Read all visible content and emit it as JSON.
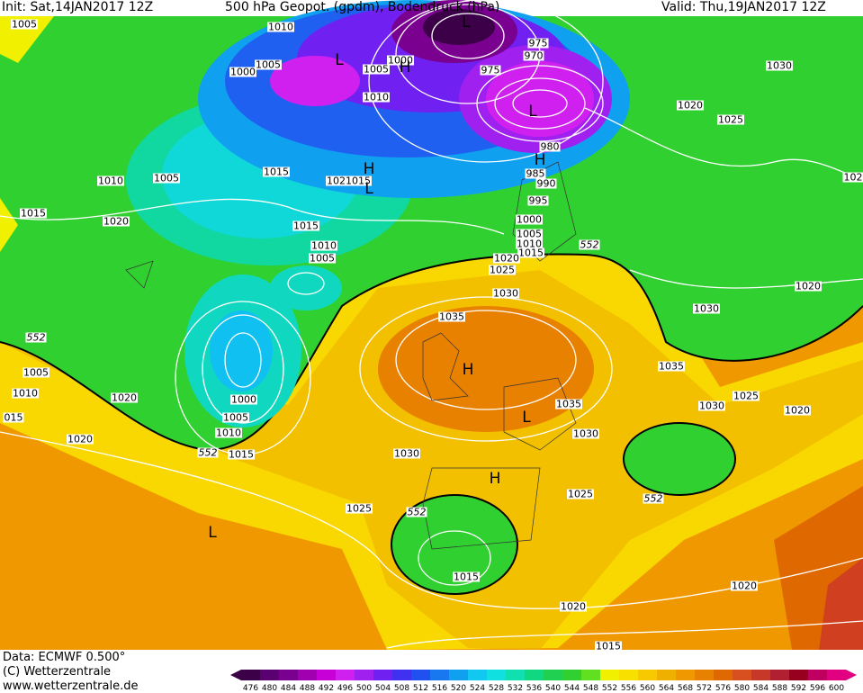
{
  "header": {
    "init": "Init: Sat,14JAN2017 12Z",
    "title": "500 hPa Geopot. (gpdm), Bodendruck (hPa)",
    "valid": "Valid: Thu,19JAN2017 12Z"
  },
  "footer": {
    "data": "Data: ECMWF  0.500°",
    "copyright": "(C) Wetterzentrale",
    "url": "www.wetterzentrale.de"
  },
  "colorbar": {
    "values": [
      476,
      480,
      484,
      488,
      492,
      496,
      500,
      504,
      508,
      512,
      516,
      520,
      524,
      528,
      532,
      536,
      540,
      544,
      548,
      552,
      556,
      560,
      564,
      568,
      572,
      576,
      580,
      584,
      588,
      592,
      596,
      600
    ],
    "colors": [
      "#3b0048",
      "#5a0070",
      "#7a0090",
      "#a000b0",
      "#c800d8",
      "#d020f0",
      "#a020f0",
      "#7020f0",
      "#4030f0",
      "#2050f0",
      "#1878f0",
      "#10a0f0",
      "#10c8f0",
      "#10e0e0",
      "#10e0b0",
      "#10d880",
      "#20d050",
      "#30d030",
      "#60e020",
      "#f0f000",
      "#f8e000",
      "#f8c800",
      "#f0b000",
      "#f09800",
      "#e88000",
      "#e06800",
      "#d85020",
      "#c83828",
      "#b02030",
      "#980020",
      "#c00060",
      "#e00080"
    ]
  },
  "map_labels": {
    "isobars": [
      1005,
      1010,
      1005,
      1000,
      1000,
      1005,
      975,
      970,
      975,
      1030,
      1010,
      1020,
      1025,
      980,
      985,
      990,
      995,
      1000,
      1005,
      1010,
      1015,
      1020,
      1025,
      1030,
      1015,
      1020,
      1015,
      1010,
      1005,
      1015,
      1020,
      1015,
      1010,
      1005,
      1020,
      1030,
      1035,
      1035,
      1005,
      1010,
      "015",
      1020,
      1000,
      1005,
      1010,
      1015,
      1020,
      1030,
      1035,
      1030,
      1030,
      1025,
      1020,
      "102",
      1025,
      1025,
      1015,
      1020,
      1020,
      1015
    ],
    "heights": [
      552,
      552,
      552,
      552,
      552
    ],
    "centers": [
      "L",
      "L",
      "H",
      "L",
      "H",
      "H",
      "L",
      "H",
      "L",
      "H",
      "L"
    ]
  }
}
